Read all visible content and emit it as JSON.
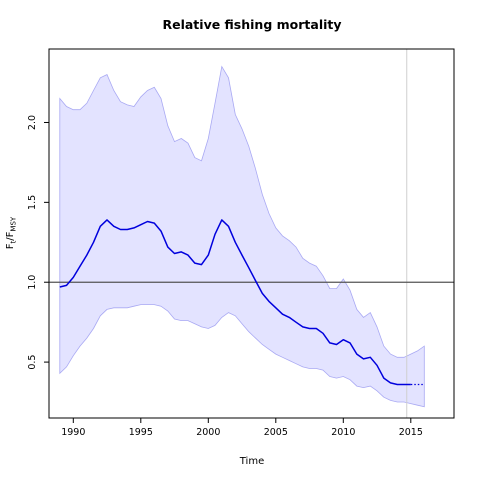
{
  "chart_data": {
    "type": "line",
    "title": "Relative fishing mortality",
    "xlabel": "Time",
    "ylabel": {
      "main": "F",
      "sub1": "t",
      "sep": "/F",
      "sub2": "MSY"
    },
    "xlim": [
      1988.2,
      2018.2
    ],
    "ylim": [
      0.15,
      2.46
    ],
    "xticks": [
      "1990",
      "1995",
      "2000",
      "2005",
      "2010",
      "2015"
    ],
    "yticks": [
      "0.5",
      "1.0",
      "1.5",
      "2.0"
    ],
    "reference_line": 1.0,
    "vertical_marker": 2014.7,
    "colors": {
      "estimate": "#0000dd",
      "band_fill": "#e3e3ff",
      "band_edge": "#a9a9f3",
      "reference": "#555555",
      "marker": "#cfcfcf"
    },
    "series": [
      {
        "role": "estimate",
        "style": "solid",
        "x": [
          1989,
          1989.5,
          1990,
          1990.5,
          1991,
          1991.5,
          1992,
          1992.5,
          1993,
          1993.5,
          1994,
          1994.5,
          1995,
          1995.5,
          1996,
          1996.5,
          1997,
          1997.5,
          1998,
          1998.5,
          1999,
          1999.5,
          2000,
          2000.5,
          2001,
          2001.5,
          2002,
          2002.5,
          2003,
          2003.5,
          2004,
          2004.5,
          2005,
          2005.5,
          2006,
          2006.5,
          2007,
          2007.5,
          2008,
          2008.5,
          2009,
          2009.5,
          2010,
          2010.5,
          2011,
          2011.5,
          2012,
          2012.5,
          2013,
          2013.5,
          2014,
          2014.5,
          2015
        ],
        "values": [
          0.97,
          0.98,
          1.03,
          1.1,
          1.17,
          1.25,
          1.35,
          1.39,
          1.35,
          1.33,
          1.33,
          1.34,
          1.36,
          1.38,
          1.37,
          1.32,
          1.22,
          1.18,
          1.19,
          1.17,
          1.12,
          1.11,
          1.17,
          1.3,
          1.39,
          1.35,
          1.25,
          1.17,
          1.09,
          1.01,
          0.93,
          0.88,
          0.84,
          0.8,
          0.78,
          0.75,
          0.72,
          0.71,
          0.71,
          0.68,
          0.62,
          0.61,
          0.64,
          0.62,
          0.55,
          0.52,
          0.53,
          0.48,
          0.4,
          0.37,
          0.36,
          0.36,
          0.36
        ]
      },
      {
        "role": "projection",
        "style": "dotted",
        "x": [
          2015,
          2015.5,
          2016
        ],
        "values": [
          0.36,
          0.36,
          0.36
        ]
      }
    ],
    "band": {
      "x": [
        1989,
        1989.5,
        1990,
        1990.5,
        1991,
        1991.5,
        1992,
        1992.5,
        1993,
        1993.5,
        1994,
        1994.5,
        1995,
        1995.5,
        1996,
        1996.5,
        1997,
        1997.5,
        1998,
        1998.5,
        1999,
        1999.5,
        2000,
        2000.5,
        2001,
        2001.5,
        2002,
        2002.5,
        2003,
        2003.5,
        2004,
        2004.5,
        2005,
        2005.5,
        2006,
        2006.5,
        2007,
        2007.5,
        2008,
        2008.5,
        2009,
        2009.5,
        2010,
        2010.5,
        2011,
        2011.5,
        2012,
        2012.5,
        2013,
        2013.5,
        2014,
        2014.5,
        2015,
        2015.5,
        2016
      ],
      "upper": [
        2.15,
        2.1,
        2.08,
        2.08,
        2.12,
        2.2,
        2.28,
        2.3,
        2.2,
        2.13,
        2.11,
        2.1,
        2.16,
        2.2,
        2.22,
        2.15,
        1.98,
        1.88,
        1.9,
        1.87,
        1.78,
        1.76,
        1.9,
        2.12,
        2.35,
        2.28,
        2.05,
        1.96,
        1.85,
        1.71,
        1.55,
        1.43,
        1.34,
        1.29,
        1.26,
        1.22,
        1.15,
        1.12,
        1.1,
        1.04,
        0.96,
        0.96,
        1.02,
        0.95,
        0.83,
        0.78,
        0.81,
        0.72,
        0.6,
        0.55,
        0.53,
        0.53,
        0.55,
        0.57,
        0.6
      ],
      "lower": [
        0.43,
        0.47,
        0.54,
        0.6,
        0.65,
        0.71,
        0.79,
        0.83,
        0.84,
        0.84,
        0.84,
        0.85,
        0.86,
        0.86,
        0.86,
        0.85,
        0.82,
        0.77,
        0.76,
        0.76,
        0.74,
        0.72,
        0.71,
        0.73,
        0.78,
        0.81,
        0.79,
        0.74,
        0.69,
        0.65,
        0.61,
        0.58,
        0.55,
        0.53,
        0.51,
        0.49,
        0.47,
        0.46,
        0.46,
        0.45,
        0.41,
        0.4,
        0.41,
        0.39,
        0.35,
        0.34,
        0.35,
        0.32,
        0.28,
        0.26,
        0.25,
        0.25,
        0.24,
        0.23,
        0.22
      ]
    }
  }
}
